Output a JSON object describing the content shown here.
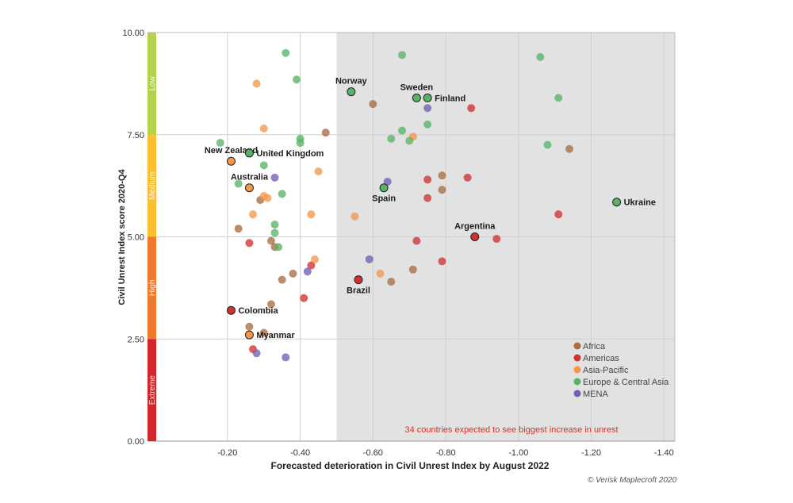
{
  "chart_data": {
    "type": "scatter",
    "xlabel": "Forecasted deterioration in Civil Unrest Index by August 2022",
    "ylabel": "Civil Unrest Index score 2020-Q4",
    "source": "© Verisk Maplecroft 2020",
    "annotation": "34 countries expected to see biggest increase in unrest",
    "annotation_color": "#d0342c",
    "xlim": [
      0.02,
      -1.43
    ],
    "ylim": [
      0,
      10
    ],
    "xticks": [
      {
        "value": -0.2,
        "label": "-0.20"
      },
      {
        "value": -0.4,
        "label": "-0.40"
      },
      {
        "value": -0.6,
        "label": "-0.60"
      },
      {
        "value": -0.8,
        "label": "-0.80"
      },
      {
        "value": -1.0,
        "label": "-1.00"
      },
      {
        "value": -1.2,
        "label": "-1.20"
      },
      {
        "value": -1.4,
        "label": "-1.40"
      }
    ],
    "yticks": [
      {
        "value": 0,
        "label": "0.00"
      },
      {
        "value": 2.5,
        "label": "2.50"
      },
      {
        "value": 5,
        "label": "5.00"
      },
      {
        "value": 7.5,
        "label": "7.50"
      },
      {
        "value": 10,
        "label": "10.00"
      }
    ],
    "grid": true,
    "shaded_region_from_x": -0.5,
    "shade_color": "#e2e2e2",
    "risk_bands": [
      {
        "label": "Extreme",
        "from": 0,
        "to": 2.5,
        "color": "#d3262c"
      },
      {
        "label": "High",
        "from": 2.5,
        "to": 5,
        "color": "#f0792d"
      },
      {
        "label": "Medium",
        "from": 5,
        "to": 7.5,
        "color": "#fbc02d"
      },
      {
        "label": "Low",
        "from": 7.5,
        "to": 10,
        "color": "#b4d34a"
      }
    ],
    "legend_position": "bottom-right",
    "series": [
      {
        "name": "Africa",
        "color": "#a86d42",
        "points": [
          [
            -0.29,
            5.9
          ],
          [
            -0.33,
            4.75
          ],
          [
            -0.32,
            4.9
          ],
          [
            -0.35,
            3.95
          ],
          [
            -0.32,
            3.35
          ],
          [
            -0.26,
            2.8
          ],
          [
            -0.3,
            2.65
          ],
          [
            -0.23,
            5.2
          ],
          [
            -0.38,
            4.1
          ],
          [
            -0.47,
            7.55
          ],
          [
            -0.6,
            8.25
          ],
          [
            -0.65,
            3.9
          ],
          [
            -0.71,
            4.2
          ],
          [
            -0.79,
            6.5
          ],
          [
            -0.79,
            6.15
          ],
          [
            -1.14,
            7.15
          ]
        ]
      },
      {
        "name": "Americas",
        "color": "#d03232",
        "points": [
          [
            -0.26,
            4.85
          ],
          [
            -0.41,
            3.5
          ],
          [
            -0.43,
            4.3
          ],
          [
            -0.72,
            4.9
          ],
          [
            -0.75,
            6.4
          ],
          [
            -0.75,
            5.95
          ],
          [
            -0.79,
            4.4
          ],
          [
            -0.86,
            6.45
          ],
          [
            -0.87,
            8.15
          ],
          [
            -0.94,
            4.95
          ],
          [
            -1.11,
            5.55
          ],
          [
            -0.27,
            2.25
          ]
        ]
      },
      {
        "name": "Asia-Pacific",
        "color": "#f4974a",
        "points": [
          [
            -0.28,
            8.75
          ],
          [
            -0.3,
            7.65
          ],
          [
            -0.3,
            6.0
          ],
          [
            -0.31,
            5.95
          ],
          [
            -0.27,
            5.55
          ],
          [
            -0.45,
            6.6
          ],
          [
            -0.43,
            5.55
          ],
          [
            -0.44,
            4.45
          ],
          [
            -0.55,
            5.5
          ],
          [
            -0.62,
            4.1
          ],
          [
            -0.71,
            7.45
          ]
        ]
      },
      {
        "name": "Europe & Central Asia",
        "color": "#58b368",
        "points": [
          [
            -0.36,
            9.5
          ],
          [
            -0.39,
            8.85
          ],
          [
            -0.4,
            7.4
          ],
          [
            -0.4,
            7.3
          ],
          [
            -0.23,
            6.3
          ],
          [
            -0.3,
            6.75
          ],
          [
            -0.35,
            6.05
          ],
          [
            -0.34,
            4.75
          ],
          [
            -0.18,
            7.3
          ],
          [
            -0.33,
            5.3
          ],
          [
            -0.33,
            5.1
          ],
          [
            -0.68,
            9.45
          ],
          [
            -0.68,
            7.6
          ],
          [
            -0.65,
            7.4
          ],
          [
            -0.7,
            7.35
          ],
          [
            -0.75,
            7.75
          ],
          [
            -1.06,
            9.4
          ],
          [
            -1.11,
            8.4
          ],
          [
            -1.08,
            7.25
          ]
        ]
      },
      {
        "name": "MENA",
        "color": "#7160b4",
        "points": [
          [
            -0.33,
            6.45
          ],
          [
            -0.64,
            6.35
          ],
          [
            -0.59,
            4.45
          ],
          [
            -0.42,
            4.15
          ],
          [
            -0.36,
            2.05
          ],
          [
            -0.28,
            2.15
          ],
          [
            -0.75,
            8.15
          ]
        ]
      }
    ],
    "highlighted": [
      {
        "label": "Norway",
        "x": -0.54,
        "y": 8.55,
        "series": "Europe & Central Asia",
        "label_pos": "above"
      },
      {
        "label": "Sweden",
        "x": -0.72,
        "y": 8.4,
        "series": "Europe & Central Asia",
        "label_pos": "above"
      },
      {
        "label": "Finland",
        "x": -0.75,
        "y": 8.4,
        "series": "Europe & Central Asia",
        "label_pos": "right"
      },
      {
        "label": "New Zealand",
        "x": -0.21,
        "y": 6.85,
        "series": "Asia-Pacific",
        "label_pos": "above"
      },
      {
        "label": "United Kingdom",
        "x": -0.26,
        "y": 7.05,
        "series": "Europe & Central Asia",
        "label_pos": "right"
      },
      {
        "label": "Australia",
        "x": -0.26,
        "y": 6.2,
        "series": "Asia-Pacific",
        "label_pos": "above"
      },
      {
        "label": "Spain",
        "x": -0.63,
        "y": 6.2,
        "series": "Europe & Central Asia",
        "label_pos": "below"
      },
      {
        "label": "Ukraine",
        "x": -1.27,
        "y": 5.85,
        "series": "Europe & Central Asia",
        "label_pos": "right"
      },
      {
        "label": "Argentina",
        "x": -0.88,
        "y": 5.0,
        "series": "Americas",
        "label_pos": "above"
      },
      {
        "label": "Brazil",
        "x": -0.56,
        "y": 3.95,
        "series": "Americas",
        "label_pos": "below"
      },
      {
        "label": "Colombia",
        "x": -0.21,
        "y": 3.2,
        "series": "Americas",
        "label_pos": "right"
      },
      {
        "label": "Myanmar",
        "x": -0.26,
        "y": 2.6,
        "series": "Asia-Pacific",
        "label_pos": "right"
      }
    ]
  }
}
